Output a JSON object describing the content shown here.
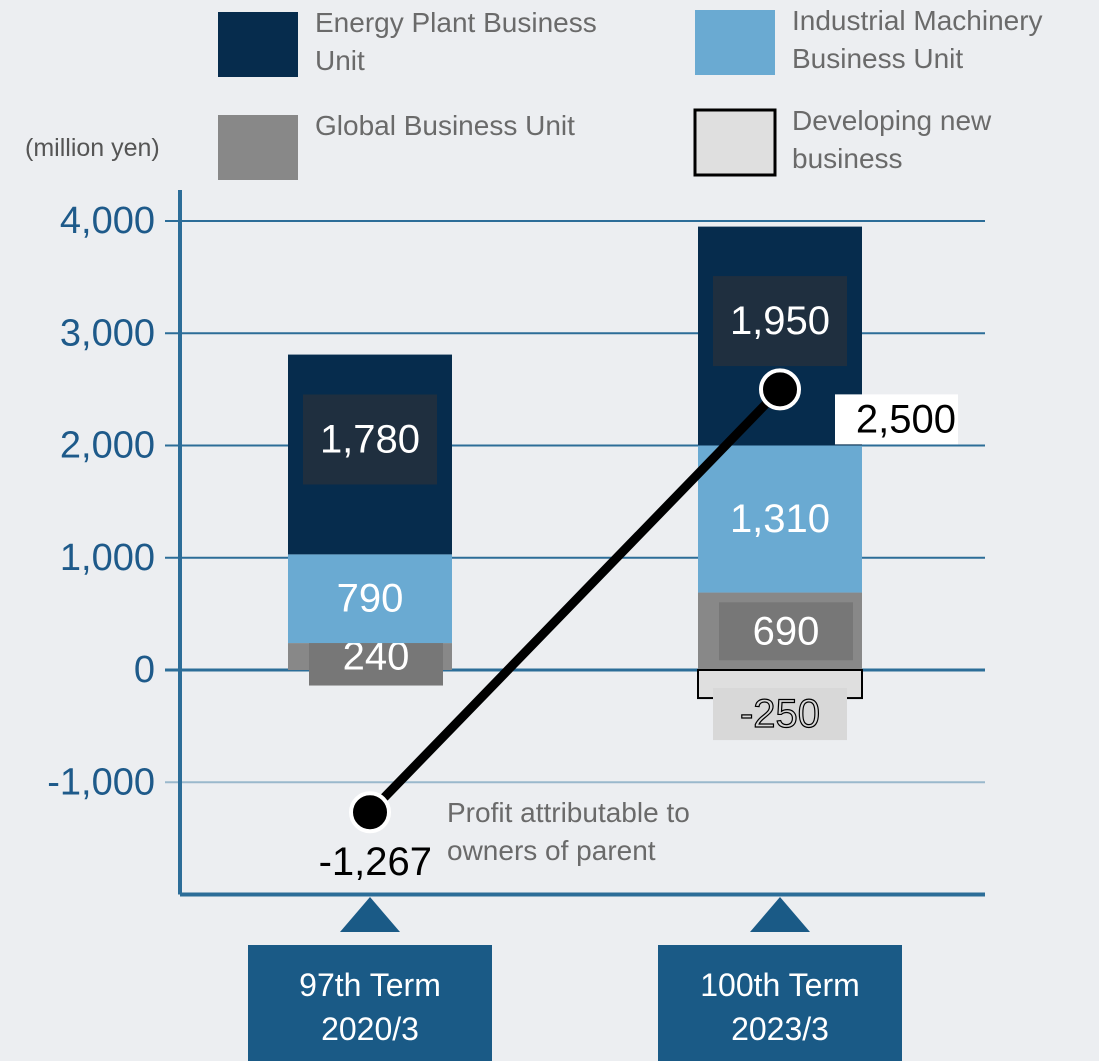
{
  "chart_data": {
    "type": "bar",
    "stacked": true,
    "y_label": "(million yen)",
    "categories": [
      "97th Term 2020/3",
      "100th Term 2023/3"
    ],
    "ylim": [
      -2000,
      4000
    ],
    "yticks": [
      {
        "value": -1000,
        "label": "-1,000"
      },
      0,
      {
        "value": 1000,
        "label": "1,000"
      },
      {
        "value": 2000,
        "label": "2,000"
      },
      {
        "value": 3000,
        "label": "3,000"
      },
      {
        "value": 4000,
        "label": "4,000"
      }
    ],
    "grid": true,
    "series": [
      {
        "name": "Global Business Unit",
        "color": "#888888",
        "values": [
          240,
          690
        ]
      },
      {
        "name": "Industrial Machinery Business Unit",
        "color": "#6aaad2",
        "values": [
          790,
          1310
        ],
        "value_labels": [
          "790",
          "1,310"
        ]
      },
      {
        "name": "Energy Plant Business Unit",
        "color": "#062c4d",
        "values": [
          1780,
          1950
        ],
        "value_labels": [
          "1,780",
          "1,950"
        ]
      },
      {
        "name": "Developing new business",
        "color": "#dfdfdf",
        "values": [
          null,
          -250
        ]
      },
      {
        "name": "Profit attributable to owners of parent",
        "type": "line",
        "color": "#000000",
        "values": [
          -1267,
          2500
        ],
        "value_labels": [
          "-1,267",
          "2,500"
        ]
      }
    ]
  }
}
